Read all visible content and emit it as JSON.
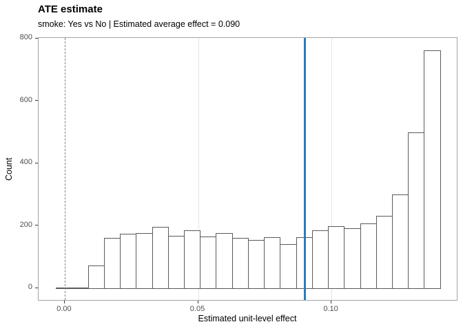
{
  "chart_data": {
    "type": "bar",
    "subtype": "histogram",
    "title": "ATE estimate",
    "subtitle": "smoke: Yes vs No | Estimated average effect = 0.090",
    "xlabel": "Estimated unit-level effect",
    "ylabel": "Count",
    "bin_start": -0.0033,
    "bin_width": 0.006,
    "counts": [
      2,
      2,
      73,
      161,
      174,
      176,
      196,
      169,
      186,
      165,
      176,
      161,
      154,
      163,
      141,
      163,
      186,
      198,
      193,
      208,
      233,
      301,
      500,
      763
    ],
    "xlim": [
      -0.0098,
      0.1475
    ],
    "ylim": [
      -42,
      802
    ],
    "x_ticks": {
      "values": [
        0,
        0.05,
        0.1
      ],
      "labels": [
        "0.00",
        "0.05",
        "0.10"
      ]
    },
    "y_ticks": {
      "values": [
        0,
        200,
        400,
        600,
        800
      ],
      "labels": [
        "0",
        "200",
        "400",
        "600",
        "800"
      ]
    },
    "x_gridlines": [
      0.05,
      0.1
    ],
    "grid": "vertical-major-only",
    "legend": "none",
    "reference_lines": [
      {
        "name": "zero-line",
        "x": 0,
        "style": "dashed",
        "color": "#7f7f7f"
      },
      {
        "name": "ate-line",
        "x": 0.09,
        "style": "solid",
        "color": "#2b7cba"
      }
    ],
    "colors": {
      "bar_fill": "#ffffff",
      "bar_stroke": "#595959",
      "panel_border": "#a3a3a3",
      "gridline": "#e4e4e4",
      "tick": "#333333",
      "tick_label": "#4d4d4d"
    }
  }
}
